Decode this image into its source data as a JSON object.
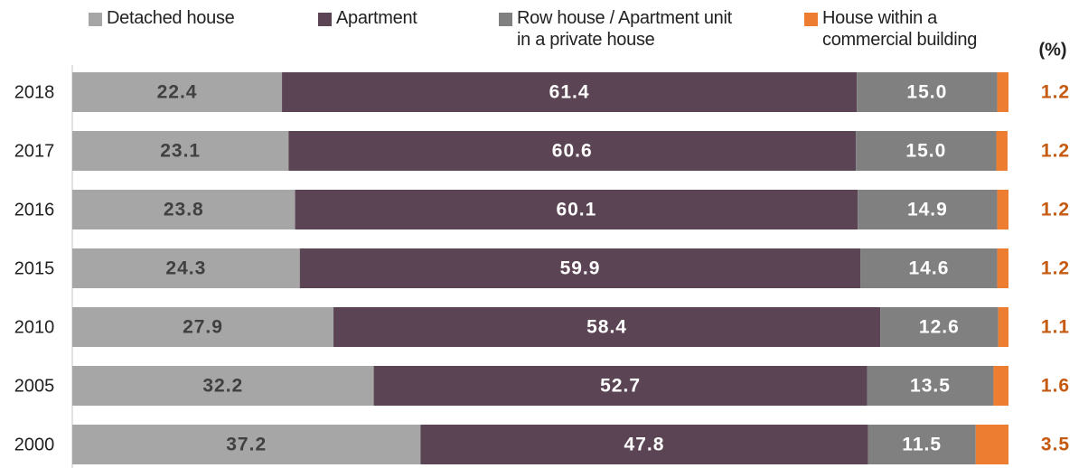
{
  "chart_data": {
    "type": "stacked_bar_horizontal",
    "unit": "(%)",
    "categories": [
      "2018",
      "2017",
      "2016",
      "2015",
      "2010",
      "2005",
      "2000"
    ],
    "xlim": [
      0,
      100
    ],
    "series": [
      {
        "name": "Detached house",
        "color": "#a6a6a6",
        "values": [
          22.4,
          23.1,
          23.8,
          24.3,
          27.9,
          32.2,
          37.2
        ]
      },
      {
        "name": "Apartment",
        "color": "#5b4454",
        "values": [
          61.4,
          60.6,
          60.1,
          59.9,
          58.4,
          52.7,
          47.8
        ]
      },
      {
        "name": "Row house / Apartment unit in a private house",
        "color": "#808080",
        "values": [
          15.0,
          15.0,
          14.9,
          14.6,
          12.6,
          13.5,
          11.5
        ],
        "value_labels": [
          "15.0",
          "15.0",
          "14.9",
          "14.6",
          "12.6",
          "13.5",
          "11.5"
        ]
      },
      {
        "name": "House within a commercial building",
        "color": "#ed7d31",
        "values": [
          1.2,
          1.2,
          1.2,
          1.2,
          1.1,
          1.6,
          3.5
        ]
      }
    ]
  }
}
